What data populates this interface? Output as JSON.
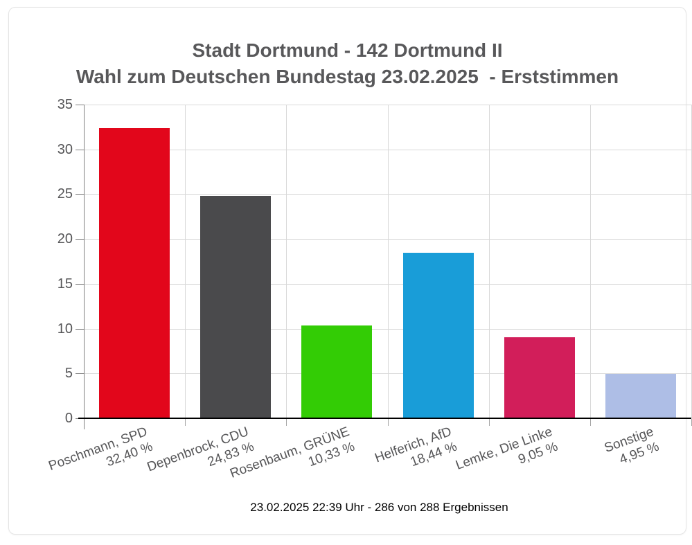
{
  "chart_data": {
    "type": "bar",
    "title": "Stadt Dortmund - 142 Dortmund II",
    "subtitle": "Wahl zum Deutschen Bundestag 23.02.2025  - Erststimmen",
    "categories": [
      "Poschmann, SPD",
      "Depenbrock, CDU",
      "Rosenbaum, GRÜNE",
      "Helferich, AfD",
      "Lemke, Die Linke",
      "Sonstige"
    ],
    "values": [
      32.4,
      24.83,
      10.33,
      18.44,
      9.05,
      4.95
    ],
    "value_labels": [
      "32,40 %",
      "24,83 %",
      "10,33 %",
      "18,44 %",
      "9,05 %",
      "4,95 %"
    ],
    "bar_colors": [
      "#e2061b",
      "#4a4a4c",
      "#33cc05",
      "#199dd8",
      "#d21e5a",
      "#aebee6"
    ],
    "bar_ids": [
      "spd",
      "cdu",
      "gruene",
      "afd",
      "linke",
      "sonstige"
    ],
    "xlabel": "",
    "ylabel": "",
    "ylim": [
      0,
      35
    ],
    "ytick_interval": 5,
    "ytick_labels": [
      "0",
      "5",
      "10",
      "15",
      "20",
      "25",
      "30",
      "35"
    ],
    "grid": true,
    "legend": false,
    "footer": "23.02.2025 22:39 Uhr - 286 von 288 Ergebnissen",
    "colors": {
      "title_text": "#58585a",
      "axis_text": "#555557",
      "gridline": "#d9d9d9",
      "axis_line": "#808080",
      "zero_line": "#000000",
      "panel_border": "#e4e4e4",
      "background": "#ffffff"
    }
  }
}
